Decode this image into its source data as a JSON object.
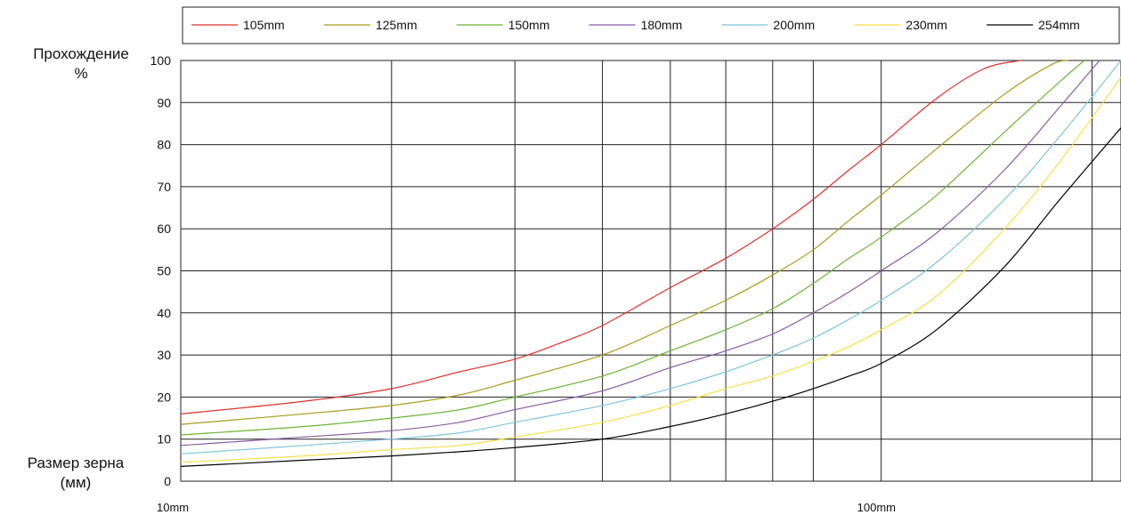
{
  "chart_data": {
    "type": "line",
    "ylabel": "Прохождение %",
    "ylabel_lines": [
      "Прохождение",
      "%"
    ],
    "xlabel_lines": [
      "Размер зерна",
      "(мм)"
    ],
    "x_scale": "log",
    "xlim": [
      10,
      220
    ],
    "ylim": [
      0,
      100
    ],
    "x_ticks": [
      {
        "value": 10,
        "label": "10mm"
      },
      {
        "value": 100,
        "label": "100mm"
      }
    ],
    "x_gridlines": [
      20,
      30,
      40,
      50,
      60,
      70,
      80,
      100,
      200
    ],
    "y_ticks": [
      0,
      10,
      20,
      30,
      40,
      50,
      60,
      70,
      80,
      90,
      100
    ],
    "grid": true,
    "legend_position": "top",
    "series": [
      {
        "name": "105mm",
        "color": "#e0302a",
        "x": [
          10,
          15,
          20,
          25,
          30,
          35,
          40,
          50,
          60,
          70,
          80,
          90,
          100,
          120,
          140,
          158
        ],
        "y": [
          16,
          19,
          22,
          26,
          29,
          33,
          37,
          46,
          53,
          60,
          67,
          74,
          80,
          91,
          98,
          100
        ]
      },
      {
        "name": "125mm",
        "color": "#a89a1c",
        "x": [
          10,
          15,
          20,
          25,
          30,
          40,
          50,
          60,
          70,
          80,
          90,
          100,
          120,
          150,
          175,
          185
        ],
        "y": [
          13.5,
          16,
          18,
          20.5,
          24,
          30,
          37,
          43,
          49,
          55,
          62,
          68,
          79,
          92,
          99,
          100
        ]
      },
      {
        "name": "150mm",
        "color": "#6ab435",
        "x": [
          10,
          15,
          20,
          25,
          30,
          40,
          50,
          60,
          70,
          80,
          90,
          100,
          120,
          150,
          180,
          195
        ],
        "y": [
          11,
          13,
          15,
          17,
          20,
          25,
          31,
          36,
          41,
          47,
          53,
          58,
          68,
          83,
          95,
          100
        ]
      },
      {
        "name": "180mm",
        "color": "#8a5aa6",
        "x": [
          10,
          15,
          20,
          25,
          30,
          40,
          50,
          60,
          70,
          80,
          90,
          100,
          120,
          150,
          180,
          205
        ],
        "y": [
          8.5,
          10.5,
          12,
          14,
          17,
          21.5,
          27,
          31,
          35,
          40,
          45,
          50,
          59,
          74,
          89,
          100
        ]
      },
      {
        "name": "200mm",
        "color": "#7ec4e0",
        "x": [
          10,
          15,
          20,
          25,
          30,
          40,
          50,
          60,
          70,
          80,
          90,
          100,
          120,
          150,
          180,
          220
        ],
        "y": [
          6.5,
          8.5,
          10,
          11.5,
          14,
          18,
          22,
          26,
          30,
          34,
          38.5,
          43,
          52,
          67,
          82,
          100
        ]
      },
      {
        "name": "230mm",
        "color": "#f5e04a",
        "x": [
          10,
          15,
          20,
          25,
          30,
          40,
          50,
          60,
          70,
          80,
          90,
          100,
          120,
          150,
          180,
          220
        ],
        "y": [
          4.5,
          6,
          7.5,
          8.5,
          10.5,
          14,
          18,
          22,
          25,
          28.5,
          32,
          36,
          44,
          60,
          76,
          96
        ]
      },
      {
        "name": "254mm",
        "color": "#000000",
        "x": [
          10,
          15,
          20,
          25,
          30,
          40,
          50,
          60,
          70,
          80,
          90,
          100,
          120,
          150,
          180,
          220
        ],
        "y": [
          3.5,
          5,
          6,
          7,
          8,
          10,
          13,
          16,
          19,
          22,
          25,
          28,
          36,
          51,
          67,
          84
        ]
      }
    ]
  }
}
